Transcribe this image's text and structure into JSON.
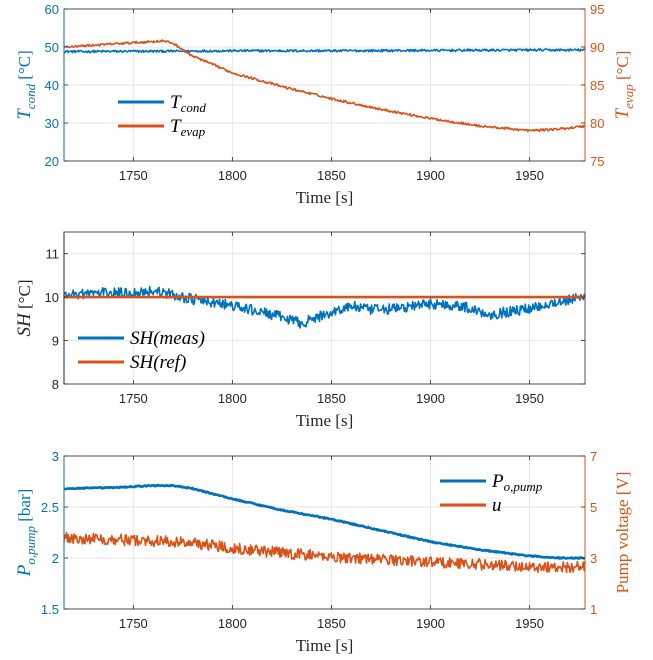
{
  "colors": {
    "blue": "#0072BD",
    "orange": "#D95319",
    "grid": "#E6E6E6",
    "axis": "#262626"
  },
  "chart_data": [
    {
      "type": "line",
      "xlim": [
        1715,
        1978
      ],
      "xticks": [
        1750,
        1800,
        1850,
        1900,
        1950
      ],
      "xlabel": "Time [s]",
      "grid": true,
      "legend_position": "left-lower",
      "left_axis": {
        "label_symbol": "T",
        "label_sub": "cond",
        "label_unit": "[°C]",
        "ylim": [
          20,
          60
        ],
        "yticks": [
          20,
          30,
          40,
          50,
          60
        ],
        "color": "#0072BD"
      },
      "right_axis": {
        "label_symbol": "T",
        "label_sub": "evap",
        "label_unit": "[°C]",
        "ylim": [
          75,
          95
        ],
        "yticks": [
          75,
          80,
          85,
          90,
          95
        ],
        "color": "#D95319"
      },
      "series": [
        {
          "name_symbol": "T",
          "name_sub": "cond",
          "axis": "left",
          "color": "#0072BD",
          "noise": 0.3,
          "x": [
            1715,
            1770,
            1800,
            1850,
            1900,
            1950,
            1978
          ],
          "y": [
            48.8,
            48.9,
            49.0,
            49.0,
            49.1,
            49.2,
            49.2
          ]
        },
        {
          "name_symbol": "T",
          "name_sub": "evap",
          "axis": "right",
          "color": "#D95319",
          "noise": 0.15,
          "x": [
            1715,
            1740,
            1765,
            1770,
            1780,
            1800,
            1825,
            1850,
            1875,
            1900,
            1925,
            1950,
            1965,
            1978
          ],
          "y": [
            90.0,
            90.4,
            90.8,
            90.5,
            88.8,
            86.6,
            84.8,
            83.2,
            81.8,
            80.6,
            79.6,
            79.0,
            79.2,
            79.6
          ]
        }
      ]
    },
    {
      "type": "line",
      "xlim": [
        1715,
        1978
      ],
      "xticks": [
        1750,
        1800,
        1850,
        1900,
        1950
      ],
      "xlabel": "Time [s]",
      "grid": true,
      "legend_position": "left-lower",
      "left_axis": {
        "label_symbol": "SH",
        "label_unit": "[°C]",
        "ylim": [
          8,
          11.5
        ],
        "yticks": [
          8,
          9,
          10,
          11
        ],
        "color": "#262626"
      },
      "series": [
        {
          "name_symbol": "SH(meas)",
          "axis": "left",
          "color": "#0072BD",
          "noise": 0.12,
          "x": [
            1715,
            1730,
            1750,
            1760,
            1770,
            1780,
            1800,
            1820,
            1835,
            1850,
            1860,
            1870,
            1885,
            1900,
            1915,
            1930,
            1945,
            1960,
            1978
          ],
          "y": [
            10.05,
            10.1,
            10.1,
            10.15,
            10.05,
            9.95,
            9.8,
            9.6,
            9.4,
            9.65,
            9.8,
            9.7,
            9.75,
            9.85,
            9.8,
            9.6,
            9.7,
            9.85,
            10.0
          ]
        },
        {
          "name_symbol": "SH(ref)",
          "axis": "left",
          "color": "#D95319",
          "noise": 0,
          "x": [
            1715,
            1978
          ],
          "y": [
            10.0,
            10.0
          ]
        }
      ]
    },
    {
      "type": "line",
      "xlim": [
        1715,
        1978
      ],
      "xticks": [
        1750,
        1800,
        1850,
        1900,
        1950
      ],
      "xlabel": "Time [s]",
      "grid": true,
      "legend_position": "top-right",
      "left_axis": {
        "label_symbol": "P",
        "label_sub": "o,pump",
        "label_unit": "[bar]",
        "ylim": [
          1.5,
          3
        ],
        "yticks": [
          1.5,
          2,
          2.5,
          3
        ],
        "color": "#0072BD"
      },
      "right_axis": {
        "label_text": "Pump voltage [V]",
        "ylim": [
          1,
          7
        ],
        "yticks": [
          1,
          3,
          5,
          7
        ],
        "color": "#D95319"
      },
      "series": [
        {
          "name_symbol": "P",
          "name_sub": "o,pump",
          "axis": "left",
          "color": "#0072BD",
          "noise": 0.006,
          "x": [
            1715,
            1740,
            1760,
            1770,
            1780,
            1800,
            1825,
            1850,
            1875,
            1900,
            1925,
            1950,
            1965,
            1978
          ],
          "y": [
            2.68,
            2.69,
            2.71,
            2.71,
            2.68,
            2.58,
            2.47,
            2.38,
            2.27,
            2.16,
            2.08,
            2.02,
            2.0,
            2.0
          ]
        },
        {
          "name_symbol": "u",
          "axis": "right",
          "color": "#D95319",
          "noise": 0.22,
          "x": [
            1715,
            1750,
            1780,
            1800,
            1825,
            1850,
            1875,
            1900,
            1925,
            1950,
            1978
          ],
          "y": [
            3.8,
            3.7,
            3.6,
            3.4,
            3.2,
            3.05,
            2.95,
            2.85,
            2.75,
            2.65,
            2.65
          ]
        }
      ]
    }
  ]
}
